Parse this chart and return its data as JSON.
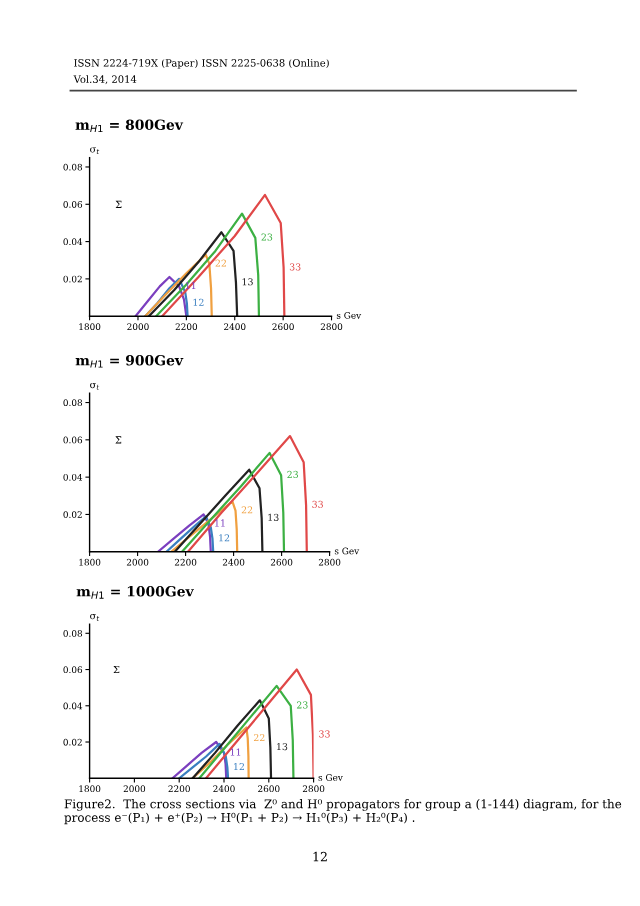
{
  "chart_data": [
    {
      "type": "line",
      "title": "m$_{H1}$ = 800Gev",
      "xlabel": "s Gev",
      "ylabel": "σ$_{t}$",
      "xlim": [
        1800,
        2800
      ],
      "xticks": [
        1800,
        2000,
        2200,
        2400,
        2600,
        2800
      ],
      "ylim": [
        0,
        0.085
      ],
      "yticks": [
        0.02,
        0.04,
        0.06,
        0.08
      ],
      "grid": false,
      "legend": false,
      "marker": "none",
      "line_style": "solid",
      "series": [
        {
          "name": "11",
          "color": "#7b3fbf",
          "x": [
            1990,
            2040,
            2090,
            2130,
            2170,
            2190,
            2200
          ],
          "values": [
            0,
            0.008,
            0.016,
            0.021,
            0.016,
            0.009,
            0
          ]
        },
        {
          "name": "12",
          "color": "#3a7fc0",
          "x": [
            2030,
            2080,
            2130,
            2170,
            2195,
            2202,
            2205
          ],
          "values": [
            0,
            0.007,
            0.015,
            0.02,
            0.013,
            0.007,
            0
          ]
        },
        {
          "name": "22",
          "color": "#f0a040",
          "x": [
            2030,
            2110,
            2200,
            2280,
            2295,
            2302,
            2305
          ],
          "values": [
            0,
            0.011,
            0.023,
            0.033,
            0.028,
            0.015,
            0
          ]
        },
        {
          "name": "13",
          "color": "#222222",
          "x": [
            2045,
            2150,
            2250,
            2345,
            2395,
            2405,
            2410
          ],
          "values": [
            0,
            0.014,
            0.029,
            0.045,
            0.035,
            0.018,
            0
          ]
        },
        {
          "name": "23",
          "color": "#3cb043",
          "x": [
            2075,
            2200,
            2320,
            2430,
            2485,
            2497,
            2500
          ],
          "values": [
            0,
            0.017,
            0.035,
            0.055,
            0.042,
            0.022,
            0
          ]
        },
        {
          "name": "33",
          "color": "#e04848",
          "x": [
            2100,
            2250,
            2400,
            2525,
            2590,
            2602,
            2605
          ],
          "values": [
            0,
            0.021,
            0.043,
            0.065,
            0.05,
            0.026,
            0
          ]
        }
      ],
      "annotations": [
        "Σ",
        "ISSN 2224-719X (Paper) ISSN 2225-0638 (Online)",
        "Vol.34, 2014"
      ]
    },
    {
      "type": "line",
      "title": "m$_{H1}$ = 900Gev",
      "xlabel": "s Gev",
      "ylabel": "σ$_{t}$",
      "xlim": [
        1800,
        2800
      ],
      "xticks": [
        1800,
        2000,
        2200,
        2400,
        2600,
        2800
      ],
      "ylim": [
        0,
        0.085
      ],
      "yticks": [
        0.02,
        0.04,
        0.06,
        0.08
      ],
      "grid": false,
      "legend": false,
      "marker": "none",
      "line_style": "solid",
      "series": [
        {
          "name": "11",
          "color": "#7b3fbf",
          "x": [
            2085,
            2150,
            2215,
            2275,
            2295,
            2302,
            2305
          ],
          "values": [
            0,
            0.007,
            0.014,
            0.02,
            0.015,
            0.008,
            0
          ]
        },
        {
          "name": "12",
          "color": "#3a7fc0",
          "x": [
            2120,
            2180,
            2240,
            2285,
            2305,
            2312,
            2315
          ],
          "values": [
            0,
            0.007,
            0.014,
            0.019,
            0.013,
            0.007,
            0
          ]
        },
        {
          "name": "22",
          "color": "#f0a040",
          "x": [
            2140,
            2225,
            2310,
            2395,
            2408,
            2413,
            2415
          ],
          "values": [
            0,
            0.009,
            0.018,
            0.027,
            0.022,
            0.012,
            0
          ]
        },
        {
          "name": "13",
          "color": "#222222",
          "x": [
            2155,
            2260,
            2365,
            2465,
            2508,
            2517,
            2520
          ],
          "values": [
            0,
            0.015,
            0.03,
            0.044,
            0.034,
            0.018,
            0
          ]
        },
        {
          "name": "23",
          "color": "#3cb043",
          "x": [
            2185,
            2310,
            2430,
            2550,
            2598,
            2607,
            2610
          ],
          "values": [
            0,
            0.018,
            0.035,
            0.053,
            0.041,
            0.021,
            0
          ]
        },
        {
          "name": "33",
          "color": "#e04848",
          "x": [
            2210,
            2350,
            2490,
            2635,
            2692,
            2702,
            2705
          ],
          "values": [
            0,
            0.021,
            0.041,
            0.062,
            0.048,
            0.025,
            0
          ]
        }
      ],
      "annotations": [
        "Σ"
      ]
    },
    {
      "type": "line",
      "title": "m$_{H1}$ = 1000Gev",
      "xlabel": "s Gev",
      "ylabel": "σ$_{t}$",
      "xlim": [
        1800,
        2800
      ],
      "xticks": [
        1800,
        2000,
        2200,
        2400,
        2600,
        2800
      ],
      "ylim": [
        0,
        0.085
      ],
      "yticks": [
        0.02,
        0.04,
        0.06,
        0.08
      ],
      "grid": false,
      "legend": false,
      "marker": "none",
      "line_style": "solid",
      "series": [
        {
          "name": "11",
          "color": "#7b3fbf",
          "x": [
            2170,
            2235,
            2300,
            2365,
            2400,
            2407,
            2410
          ],
          "values": [
            0,
            0.007,
            0.014,
            0.02,
            0.014,
            0.008,
            0
          ]
        },
        {
          "name": "12",
          "color": "#3a7fc0",
          "x": [
            2200,
            2260,
            2320,
            2380,
            2408,
            2415,
            2418
          ],
          "values": [
            0,
            0.006,
            0.012,
            0.019,
            0.012,
            0.006,
            0
          ]
        },
        {
          "name": "22",
          "color": "#f0a040",
          "x": [
            2260,
            2340,
            2420,
            2500,
            2506,
            2509,
            2510
          ],
          "values": [
            0,
            0.009,
            0.019,
            0.028,
            0.022,
            0.012,
            0
          ]
        },
        {
          "name": "13",
          "color": "#222222",
          "x": [
            2260,
            2360,
            2460,
            2560,
            2600,
            2607,
            2610
          ],
          "values": [
            0,
            0.014,
            0.029,
            0.043,
            0.033,
            0.017,
            0
          ]
        },
        {
          "name": "23",
          "color": "#3cb043",
          "x": [
            2290,
            2405,
            2520,
            2635,
            2698,
            2707,
            2710
          ],
          "values": [
            0,
            0.017,
            0.034,
            0.051,
            0.04,
            0.021,
            0
          ]
        },
        {
          "name": "33",
          "color": "#e04848",
          "x": [
            2320,
            2455,
            2590,
            2725,
            2788,
            2797,
            2800
          ],
          "values": [
            0,
            0.02,
            0.04,
            0.06,
            0.046,
            0.024,
            0
          ]
        }
      ],
      "annotations": [
        "Σ",
        "Figure2.  The cross sections via  Z⁰ and H⁰ propagators for group a (1-144) diagram, for the process e⁻(P₁) + e⁺(P₂) → H⁰(P₁ + P₂) → H₁⁰(P₃) + H₂⁰(P₄) .",
        "12"
      ]
    }
  ]
}
